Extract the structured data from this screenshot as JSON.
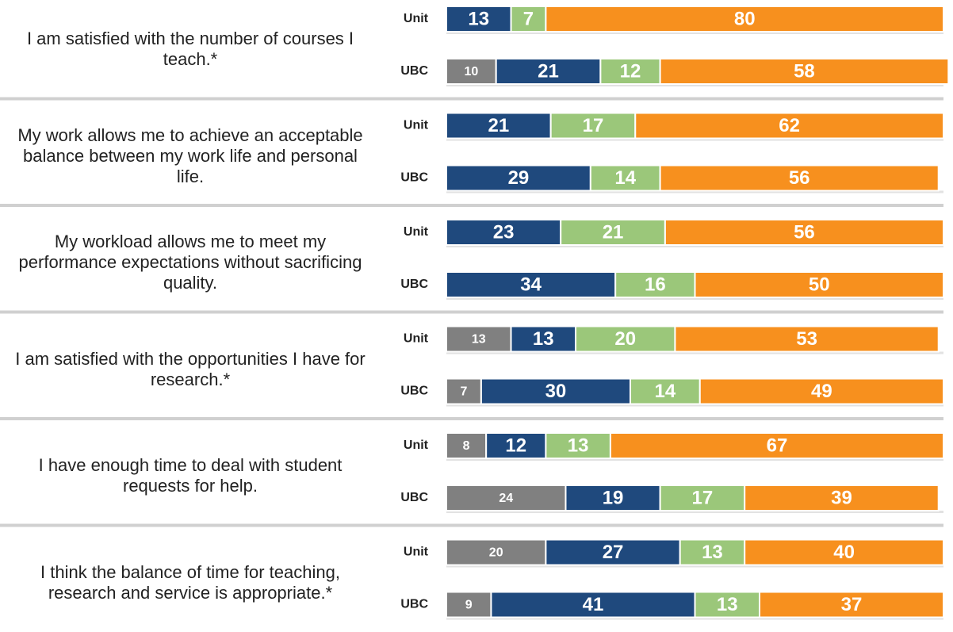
{
  "chart_data": {
    "type": "stacked-bar",
    "categories": [
      "I am satisfied with the number of courses I teach.*",
      "My work allows me to achieve an acceptable balance between my work life and personal life.",
      "My workload allows me to meet my performance expectations without sacrificing quality.",
      "I am satisfied with the opportunities I have for research.*",
      "I have enough time to deal with student requests for help.",
      "I think the balance of time for teaching, research and service is appropriate.*"
    ],
    "groups": [
      "Unit",
      "UBC"
    ],
    "xlim": [
      0,
      100
    ],
    "series": [
      {
        "color": "#808080",
        "values": [
          [
            null,
            10
          ],
          [
            null,
            null
          ],
          [
            null,
            null
          ],
          [
            13,
            7
          ],
          [
            8,
            24
          ],
          [
            20,
            9
          ]
        ]
      },
      {
        "color": "#1f497d",
        "values": [
          [
            13,
            21
          ],
          [
            21,
            29
          ],
          [
            23,
            34
          ],
          [
            13,
            30
          ],
          [
            12,
            19
          ],
          [
            27,
            41
          ]
        ]
      },
      {
        "color": "#9bc77a",
        "values": [
          [
            7,
            12
          ],
          [
            17,
            14
          ],
          [
            21,
            16
          ],
          [
            20,
            14
          ],
          [
            13,
            17
          ],
          [
            13,
            13
          ]
        ]
      },
      {
        "color": "#f7901e",
        "values": [
          [
            80,
            58
          ],
          [
            62,
            56
          ],
          [
            56,
            50
          ],
          [
            53,
            49
          ],
          [
            67,
            39
          ],
          [
            40,
            37
          ]
        ]
      }
    ]
  }
}
